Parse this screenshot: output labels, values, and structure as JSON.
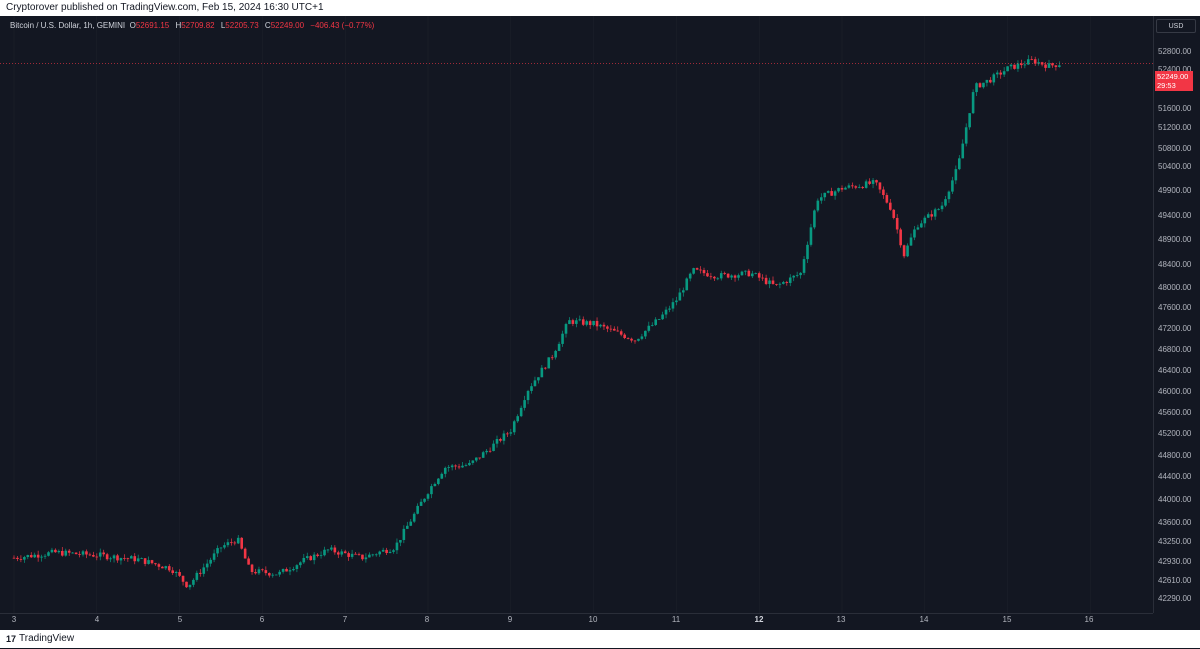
{
  "header": {
    "published_text": "Cryptorover published on TradingView.com, Feb 15, 2024 16:30 UTC+1"
  },
  "legend": {
    "symbol": "Bitcoin / U.S. Dollar, 1h, GEMINI",
    "open_key": "O",
    "open": "52691.15",
    "high_key": "H",
    "high": "52709.82",
    "low_key": "L",
    "low": "52205.73",
    "close_key": "C",
    "close": "52249.00",
    "change": "−406.43 (−0.77%)"
  },
  "price_scale": {
    "currency": "USD",
    "labels": [
      "52800.00",
      "52400.00",
      "51600.00",
      "51200.00",
      "50800.00",
      "50400.00",
      "49900.00",
      "49400.00",
      "48900.00",
      "48400.00",
      "48000.00",
      "47600.00",
      "47200.00",
      "46800.00",
      "46400.00",
      "46000.00",
      "45600.00",
      "45200.00",
      "44800.00",
      "44400.00",
      "44000.00",
      "43600.00",
      "43250.00",
      "42930.00",
      "42610.00",
      "42290.00"
    ],
    "last_price": "52249.00",
    "countdown": "29:53"
  },
  "time_axis": {
    "labels": [
      "3",
      "4",
      "5",
      "6",
      "7",
      "8",
      "9",
      "10",
      "11",
      "12",
      "13",
      "14",
      "15",
      "16"
    ],
    "bold_label": "12"
  },
  "colors": {
    "background": "#131722",
    "up": "#089981",
    "down": "#f23645",
    "grid": "#1e222d"
  },
  "footer": {
    "logo": "17",
    "brand": "TradingView"
  },
  "chart_data": {
    "type": "candlestick",
    "title": "Bitcoin / U.S. Dollar, 1h, GEMINI",
    "x_axis_days": [
      "3",
      "4",
      "5",
      "6",
      "7",
      "8",
      "9",
      "10",
      "11",
      "12",
      "13",
      "14",
      "15",
      "16"
    ],
    "ylim": [
      42100,
      52950
    ],
    "series": [
      {
        "day": 3.0,
        "close": 42950
      },
      {
        "day": 3.5,
        "close": 43050
      },
      {
        "day": 4.0,
        "close": 43000
      },
      {
        "day": 4.5,
        "close": 42920
      },
      {
        "day": 4.9,
        "close": 42750
      },
      {
        "day": 5.1,
        "close": 42420
      },
      {
        "day": 5.5,
        "close": 43150
      },
      {
        "day": 5.7,
        "close": 43300
      },
      {
        "day": 5.85,
        "close": 42700
      },
      {
        "day": 6.2,
        "close": 42650
      },
      {
        "day": 6.5,
        "close": 42900
      },
      {
        "day": 6.8,
        "close": 43100
      },
      {
        "day": 7.2,
        "close": 42950
      },
      {
        "day": 7.6,
        "close": 43150
      },
      {
        "day": 8.0,
        "close": 44200
      },
      {
        "day": 8.2,
        "close": 44650
      },
      {
        "day": 8.5,
        "close": 44700
      },
      {
        "day": 8.7,
        "close": 44950
      },
      {
        "day": 9.0,
        "close": 45350
      },
      {
        "day": 9.2,
        "close": 46100
      },
      {
        "day": 9.5,
        "close": 46750
      },
      {
        "day": 9.7,
        "close": 47400
      },
      {
        "day": 10.0,
        "close": 47350
      },
      {
        "day": 10.5,
        "close": 47050
      },
      {
        "day": 10.8,
        "close": 47450
      },
      {
        "day": 11.0,
        "close": 47800
      },
      {
        "day": 11.2,
        "close": 48350
      },
      {
        "day": 11.5,
        "close": 48250
      },
      {
        "day": 11.9,
        "close": 48300
      },
      {
        "day": 12.2,
        "close": 48050
      },
      {
        "day": 12.5,
        "close": 48300
      },
      {
        "day": 12.7,
        "close": 49700
      },
      {
        "day": 13.0,
        "close": 49900
      },
      {
        "day": 13.4,
        "close": 50000
      },
      {
        "day": 13.6,
        "close": 49500
      },
      {
        "day": 13.75,
        "close": 48650
      },
      {
        "day": 13.9,
        "close": 49200
      },
      {
        "day": 14.2,
        "close": 49550
      },
      {
        "day": 14.4,
        "close": 50300
      },
      {
        "day": 14.6,
        "close": 51800
      },
      {
        "day": 14.8,
        "close": 51950
      },
      {
        "day": 15.0,
        "close": 52150
      },
      {
        "day": 15.3,
        "close": 52300
      },
      {
        "day": 15.5,
        "close": 52200
      },
      {
        "day": 15.65,
        "close": 52249
      }
    ]
  }
}
